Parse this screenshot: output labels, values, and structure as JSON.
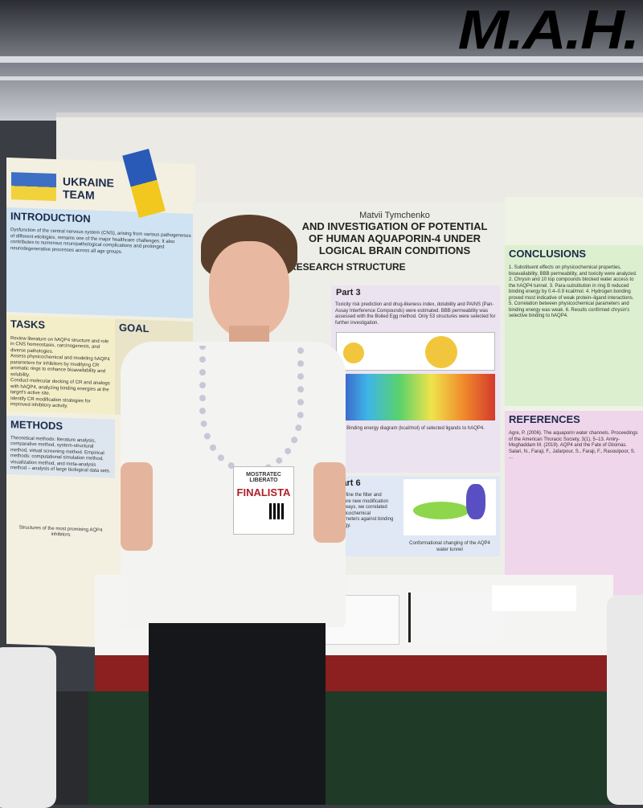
{
  "logo": "M.A.H.",
  "left_poster": {
    "team": "UKRAINE TEAM",
    "introduction": {
      "title": "INTRODUCTION",
      "text": "Dysfunction of the central nervous system (CNS), arising from various pathogeneses of different etiologies, remains one of the major healthcare challenges. It also contributes to numerous neuropathological complications and prolonged neurodegenerative processes across all age groups."
    },
    "tasks": {
      "title": "TASKS",
      "items": [
        "Review literature on hAQP4 structure and role in CNS homeostasis, carcinogenesis, and diverse pathologies.",
        "Assess physicochemical and modeling hAQP4 parameters for inhibitors by modifying CR aromatic rings to enhance bioavailability and solubility.",
        "Conduct molecular docking of CR and analogs with hAQP4, analyzing binding energies at the target's active site.",
        "Identify CR modification strategies for improved inhibitory activity."
      ]
    },
    "goal": {
      "title": "GOAL"
    },
    "methods": {
      "title": "METHODS",
      "text": "Theoretical methods: literature analysis, comparative method, system-structural method, virtual screening method. Empirical methods: computational simulation method, visualization method, and meta-analysis method – analysis of large biological data sets."
    },
    "caption": "Structures of the most promising AQP4 inhibitors"
  },
  "center_poster": {
    "author": "Matvii Tymchenko",
    "title_lines": [
      "AND INVESTIGATION OF POTENTIAL",
      "OF HUMAN AQUAPORIN-4 UNDER",
      "LOGICAL BRAIN CONDITIONS"
    ],
    "structure": "RESEARCH STRUCTURE",
    "part3": {
      "title": "Part 3",
      "text": "Toxicity risk prediction and drug-likeness index, dolubility and PAINS (Pan-Assay Interference Compounds) were estimated. BBB permeability was assessed with the Boiled Egg method. Only 53 structures were selected for further investigation."
    },
    "binding_caption": "Binding energy diagram (kcal/mol) of selected ligands to hAQP4.",
    "part6": {
      "title": "Part 6",
      "text": "To refine the filter and explore new modification pathways, we correlated physicochemical parameters against binding energy."
    },
    "conformation_caption": "Conformational changing of the AQP4 water tunnel"
  },
  "right_poster": {
    "conclusions": {
      "title": "CONCLUSIONS",
      "text": "1. Substituent effects on physicochemical properties, bioavailability, BBB permeability, and toxicity were analyzed. 2. Chrysin and 10 top compounds blocked water access to the hAQP4 tunnel. 3. Para-substitution in ring B reduced binding energy by 0.4–0.9 kcal/mol. 4. Hydrogen bonding proved most indicative of weak protein–ligand interactions. 5. Correlation between physicochemical parameters and binding energy was weak. 6. Results confirmed chrysin's selective binding to hAQP4."
    },
    "references": {
      "title": "REFERENCES",
      "text": "Agre, P. (2006). The aquaporin water channels. Proceedings of the American Thoracic Society, 3(1), 5–13. Amiry-Moghaddam M. (2019). AQP4 and the Fate of Gliomas. Salari, N., Faraji, F., Jafarpour, S., Faraji, F., Rasoulpoor, S. ..."
    }
  },
  "badge": {
    "event": "MOSTRATEC LIBERATO",
    "label": "FINALISTA"
  },
  "colors": {
    "table_red": "#8c1f1f",
    "skirt_green": "#1f3a26",
    "badge_red": "#b0202a"
  }
}
